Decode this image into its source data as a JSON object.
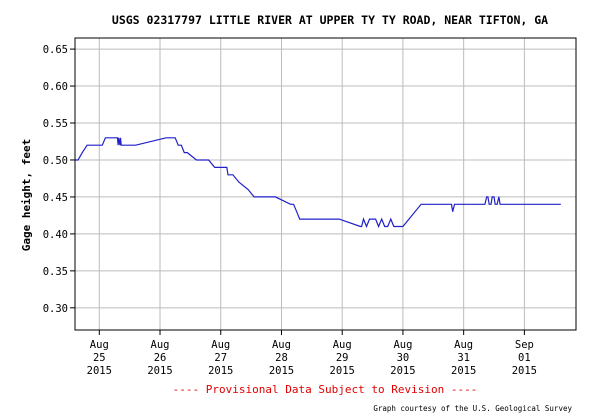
{
  "chart_data": {
    "type": "line",
    "title": "USGS 02317797 LITTLE RIVER AT UPPER TY TY ROAD, NEAR TIFTON, GA",
    "ylabel": "Gage height, feet",
    "xlabel": "",
    "ylim": [
      0.27,
      0.665
    ],
    "xlim": [
      24.6,
      32.85
    ],
    "y_ticks": [
      "0.65",
      "0.60",
      "0.55",
      "0.50",
      "0.45",
      "0.40",
      "0.35",
      "0.30"
    ],
    "x_ticks": [
      {
        "month": "Aug",
        "day": "25",
        "year": "2015"
      },
      {
        "month": "Aug",
        "day": "26",
        "year": "2015"
      },
      {
        "month": "Aug",
        "day": "27",
        "year": "2015"
      },
      {
        "month": "Aug",
        "day": "28",
        "year": "2015"
      },
      {
        "month": "Aug",
        "day": "29",
        "year": "2015"
      },
      {
        "month": "Aug",
        "day": "30",
        "year": "2015"
      },
      {
        "month": "Aug",
        "day": "31",
        "year": "2015"
      },
      {
        "month": "Sep",
        "day": "01",
        "year": "2015"
      }
    ],
    "grid": true,
    "line_color": "#2020c8",
    "series": [
      {
        "name": "",
        "x": [
          24.6,
          24.65,
          24.72,
          24.8,
          24.88,
          25.0,
          25.05,
          25.1,
          25.28,
          25.3,
          25.31,
          25.32,
          25.34,
          25.35,
          25.36,
          25.6,
          26.1,
          26.15,
          26.25,
          26.3,
          26.35,
          26.4,
          26.45,
          26.6,
          26.7,
          26.8,
          26.9,
          27.0,
          27.05,
          27.1,
          27.12,
          27.15,
          27.2,
          27.3,
          27.45,
          27.55,
          27.9,
          28.15,
          28.2,
          28.25,
          28.3,
          28.35,
          28.45,
          28.6,
          28.8,
          28.9,
          28.95,
          29.3,
          29.32,
          29.35,
          29.4,
          29.45,
          29.5,
          29.55,
          29.6,
          29.65,
          29.7,
          29.75,
          29.8,
          29.85,
          29.9,
          29.95,
          30.0,
          30.3,
          30.33,
          30.35,
          30.8,
          30.82,
          30.85,
          30.88,
          31.3,
          31.32,
          31.35,
          31.38,
          31.4,
          31.42,
          31.45,
          31.47,
          31.5,
          31.52,
          31.55,
          31.58,
          31.6,
          32.6
        ],
        "y": [
          0.5,
          0.5,
          0.51,
          0.52,
          0.52,
          0.52,
          0.52,
          0.53,
          0.53,
          0.53,
          0.52,
          0.53,
          0.52,
          0.53,
          0.52,
          0.52,
          0.53,
          0.53,
          0.53,
          0.52,
          0.52,
          0.51,
          0.51,
          0.5,
          0.5,
          0.5,
          0.49,
          0.49,
          0.49,
          0.49,
          0.48,
          0.48,
          0.48,
          0.47,
          0.46,
          0.45,
          0.45,
          0.44,
          0.44,
          0.43,
          0.42,
          0.42,
          0.42,
          0.42,
          0.42,
          0.42,
          0.42,
          0.41,
          0.41,
          0.42,
          0.41,
          0.42,
          0.42,
          0.42,
          0.41,
          0.42,
          0.41,
          0.41,
          0.42,
          0.41,
          0.41,
          0.41,
          0.41,
          0.44,
          0.44,
          0.44,
          0.44,
          0.43,
          0.44,
          0.44,
          0.44,
          0.44,
          0.44,
          0.45,
          0.45,
          0.44,
          0.44,
          0.45,
          0.45,
          0.44,
          0.44,
          0.45,
          0.44,
          0.44
        ]
      }
    ]
  },
  "footer": {
    "provisional": "---- Provisional Data Subject to Revision ----",
    "credit": "Graph courtesy of the U.S. Geological Survey"
  },
  "colors": {
    "grid": "#bcbcbc",
    "frame": "#000000",
    "provisional": "#e00000"
  }
}
